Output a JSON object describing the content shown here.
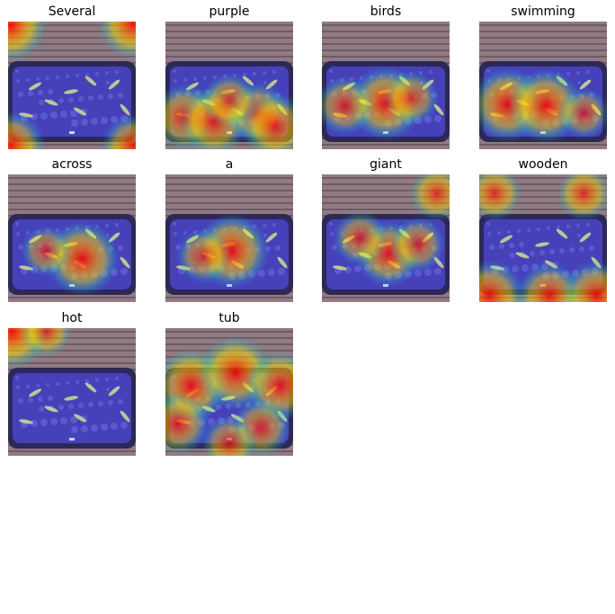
{
  "panels": [
    {
      "word": "Several",
      "attention": [
        [
          0.02,
          0.03,
          0.95
        ],
        [
          0.98,
          0.02,
          0.9
        ],
        [
          0.02,
          0.97,
          0.85
        ],
        [
          0.98,
          0.97,
          0.7
        ]
      ]
    },
    {
      "word": "purple",
      "attention": [
        [
          0.15,
          0.75,
          0.8
        ],
        [
          0.38,
          0.78,
          0.9
        ],
        [
          0.72,
          0.72,
          0.7
        ],
        [
          0.86,
          0.82,
          0.8
        ],
        [
          0.5,
          0.62,
          0.5
        ]
      ]
    },
    {
      "word": "birds",
      "attention": [
        [
          0.5,
          0.64,
          1.0
        ],
        [
          0.18,
          0.66,
          0.6
        ],
        [
          0.7,
          0.6,
          0.5
        ]
      ]
    },
    {
      "word": "swimming",
      "attention": [
        [
          0.22,
          0.65,
          1.0
        ],
        [
          0.52,
          0.66,
          1.0
        ],
        [
          0.82,
          0.72,
          0.4
        ]
      ]
    },
    {
      "word": "across",
      "attention": [
        [
          0.58,
          0.66,
          1.0
        ],
        [
          0.3,
          0.6,
          0.4
        ]
      ]
    },
    {
      "word": "a",
      "attention": [
        [
          0.52,
          0.6,
          1.0
        ],
        [
          0.3,
          0.64,
          0.5
        ]
      ]
    },
    {
      "word": "giant",
      "attention": [
        [
          0.52,
          0.62,
          0.8
        ],
        [
          0.3,
          0.5,
          0.5
        ],
        [
          0.75,
          0.55,
          0.5
        ],
        [
          0.9,
          0.15,
          0.5
        ]
      ]
    },
    {
      "word": "wooden",
      "attention": [
        [
          0.08,
          0.95,
          0.9
        ],
        [
          0.55,
          0.95,
          0.8
        ],
        [
          0.92,
          0.95,
          0.9
        ],
        [
          0.12,
          0.15,
          0.5
        ],
        [
          0.82,
          0.15,
          0.5
        ]
      ]
    },
    {
      "word": "hot",
      "attention": [
        [
          0.03,
          0.03,
          1.0
        ],
        [
          0.3,
          0.03,
          0.4
        ]
      ]
    },
    {
      "word": "tub",
      "attention": [
        [
          0.2,
          0.45,
          1.0
        ],
        [
          0.55,
          0.35,
          1.0
        ],
        [
          0.9,
          0.45,
          0.9
        ],
        [
          0.1,
          0.75,
          0.7
        ],
        [
          0.75,
          0.78,
          0.6
        ],
        [
          0.5,
          0.9,
          0.5
        ]
      ]
    }
  ],
  "colors": {
    "deck_light": "#a08070",
    "deck_dark": "#5a4a44",
    "tub_rim": "#2c2440",
    "water": "#4a3fb0",
    "water_light": "#7a78e0",
    "fish": "#e8f080"
  }
}
